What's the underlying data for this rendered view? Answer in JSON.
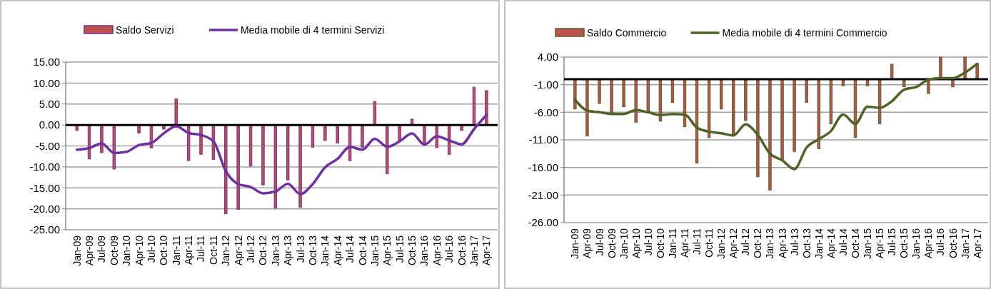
{
  "chart_data": [
    {
      "type": "bar",
      "categories": [
        "Jan-09",
        "Apr-09",
        "Jul-09",
        "Oct-09",
        "Jan-10",
        "Apr-10",
        "Jul-10",
        "Oct-10",
        "Jan-11",
        "Apr-11",
        "Jul-11",
        "Oct-11",
        "Jan-12",
        "Apr-12",
        "Jul-12",
        "Oct-12",
        "Jan-13",
        "Apr-13",
        "Jul-13",
        "Oct-13",
        "Jan-14",
        "Apr-14",
        "Jul-14",
        "Oct-14",
        "Jan-15",
        "Apr-15",
        "Jul-15",
        "Oct-15",
        "Jan-16",
        "Apr-16",
        "Jul-16",
        "Oct-16",
        "Jan-17",
        "Apr-17"
      ],
      "series": [
        {
          "name": "Saldo Servizi",
          "color": "#c0504d",
          "values": [
            -1.3,
            -8.1,
            -6.6,
            -10.5,
            0,
            -1.9,
            -5.5,
            -1.0,
            6.2,
            -8.5,
            -7.0,
            -8.2,
            -21.2,
            -20.1,
            -9.8,
            -14.3,
            -19.8,
            -13.1,
            -19.6,
            -5.3,
            -3.7,
            -4.3,
            -8.5,
            -5.3,
            5.6,
            -11.6,
            -3.7,
            1.4,
            -4.7,
            -5.4,
            -7.0,
            -1.3,
            9.0,
            8.2
          ]
        },
        {
          "name": "Media mobile di 4 termini Servizi",
          "type": "line",
          "color": "#7030a0",
          "values": [
            -5.9,
            -5.5,
            -4.4,
            -6.7,
            -6.4,
            -4.8,
            -4.3,
            -2.0,
            -0.3,
            -1.9,
            -2.4,
            -3.9,
            -11.0,
            -14.1,
            -14.8,
            -16.3,
            -15.9,
            -14.0,
            -16.5,
            -14.1,
            -10.1,
            -8.1,
            -5.2,
            -5.9,
            -3.3,
            -5.2,
            -3.9,
            -2.0,
            -4.7,
            -2.7,
            -3.7,
            -4.6,
            -1.0,
            2.4
          ]
        }
      ],
      "ylim": [
        -25,
        15
      ],
      "yticks": [
        {
          "value": -25,
          "label": "-25.00"
        },
        {
          "value": -20,
          "label": "-20.00"
        },
        {
          "value": -15,
          "label": "-15.00"
        },
        {
          "value": -10,
          "label": "-10.00"
        },
        {
          "value": -5,
          "label": "-5.00"
        },
        {
          "value": 0,
          "label": "0.00"
        },
        {
          "value": 5,
          "label": "5.00"
        },
        {
          "value": 10,
          "label": "10.00"
        },
        {
          "value": 15,
          "label": "15.00"
        }
      ],
      "grid": "y",
      "legend": "top",
      "ref_lines": [
        {
          "axis": "y",
          "value": 0,
          "color": "#000000"
        }
      ]
    },
    {
      "type": "bar",
      "categories": [
        "Jan-09",
        "Apr-09",
        "Jul-09",
        "Oct-09",
        "Jan-10",
        "Apr-10",
        "Jul-10",
        "Oct-10",
        "Jan-11",
        "Apr-11",
        "Jul-11",
        "Oct-11",
        "Jan-12",
        "Apr-12",
        "Jul-12",
        "Oct-12",
        "Jan-13",
        "Apr-13",
        "Jul-13",
        "Oct-13",
        "Jan-14",
        "Apr-14",
        "Jul-14",
        "Oct-14",
        "Jan-15",
        "Apr-15",
        "Jul-15",
        "Oct-15",
        "Jan-16",
        "Apr-16",
        "Jul-16",
        "Oct-16",
        "Jan-17",
        "Apr-17"
      ],
      "series": [
        {
          "name": "Saldo Commercio",
          "color": "#c0504d",
          "values": [
            -5.4,
            -10.3,
            -4.4,
            -6.0,
            -5.0,
            -7.8,
            -6.0,
            -7.6,
            -4.2,
            -8.6,
            -15.2,
            -10.6,
            -5.4,
            -10.3,
            -7.5,
            -17.7,
            -20.1,
            -14.6,
            -13.1,
            -4.2,
            -12.6,
            -8.1,
            -1.2,
            -10.6,
            -1.2,
            -8.1,
            2.7,
            -1.4,
            0,
            -2.6,
            4.0,
            -1.4,
            4.0,
            2.8
          ]
        },
        {
          "name": "Media mobile di 4 termini Commercio",
          "type": "line",
          "color": "#4f6228",
          "values": [
            -3.7,
            -5.7,
            -6.0,
            -6.3,
            -6.3,
            -5.6,
            -6.0,
            -6.5,
            -6.3,
            -6.4,
            -8.8,
            -9.5,
            -9.8,
            -10.2,
            -8.2,
            -10.1,
            -13.5,
            -14.7,
            -16.3,
            -12.4,
            -10.9,
            -9.4,
            -6.4,
            -8.1,
            -5.0,
            -5.2,
            -4.0,
            -1.9,
            -1.4,
            -0.1,
            0.2,
            0.2,
            1.2,
            2.8
          ]
        }
      ],
      "ylim": [
        -26,
        4
      ],
      "yticks": [
        {
          "value": -26,
          "label": "-26.00"
        },
        {
          "value": -21,
          "label": "-21.00"
        },
        {
          "value": -16,
          "label": "-16.00"
        },
        {
          "value": -11,
          "label": "-11.00"
        },
        {
          "value": -6,
          "label": "-6.00"
        },
        {
          "value": -1,
          "label": "-1.00"
        },
        {
          "value": 4,
          "label": "4.00"
        }
      ],
      "grid": "y",
      "legend": "top",
      "ref_lines": [
        {
          "axis": "y",
          "value": 0,
          "color": "#000000"
        }
      ]
    }
  ]
}
